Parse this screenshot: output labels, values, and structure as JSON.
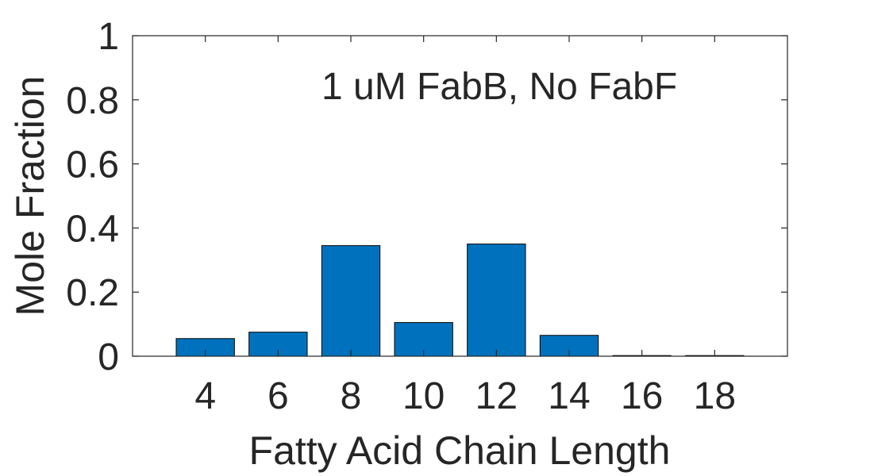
{
  "chart_data": {
    "type": "bar",
    "annotation": "1 uM FabB, No FabF",
    "xlabel": "Fatty Acid Chain Length",
    "ylabel": "Mole Fraction",
    "categories": [
      4,
      6,
      8,
      10,
      12,
      14,
      16,
      18
    ],
    "values": [
      0.055,
      0.075,
      0.345,
      0.105,
      0.35,
      0.065,
      0.002,
      0.002
    ],
    "xlim": [
      2,
      20
    ],
    "ylim": [
      0,
      1
    ],
    "yticks": [
      0,
      0.2,
      0.4,
      0.6,
      0.8,
      1
    ],
    "ytick_labels": [
      "0",
      "0.2",
      "0.4",
      "0.6",
      "0.8",
      "1"
    ],
    "bar_color": "#0072BD",
    "grid": false
  }
}
